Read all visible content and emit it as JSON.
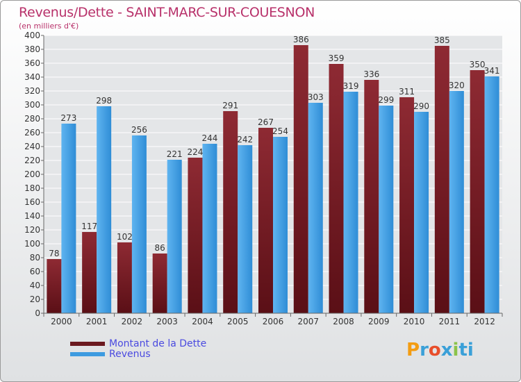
{
  "chart_data": {
    "type": "bar",
    "title": "Revenus/Dette - SAINT-MARC-SUR-COUESNON",
    "subtitle": "(en milliers d'€)",
    "xlabel": "",
    "ylabel": "",
    "ylim": [
      0,
      400
    ],
    "ytick_step": 20,
    "grid": true,
    "categories": [
      "2000",
      "2001",
      "2002",
      "2003",
      "2004",
      "2005",
      "2006",
      "2007",
      "2008",
      "2009",
      "2010",
      "2011",
      "2012"
    ],
    "series": [
      {
        "name": "Montant de la Dette",
        "color": "#7a1f26",
        "values": [
          78,
          117,
          102,
          86,
          224,
          291,
          267,
          386,
          359,
          336,
          311,
          385,
          350
        ]
      },
      {
        "name": "Revenus",
        "color": "#3d9be0",
        "values": [
          273,
          298,
          256,
          221,
          244,
          242,
          254,
          303,
          319,
          299,
          290,
          320,
          341
        ]
      }
    ],
    "legend": [
      "Montant de la Dette",
      "Revenus"
    ],
    "legend_position": "bottom-left"
  },
  "logo": {
    "text": "Proxiti",
    "letters": [
      "P",
      "r",
      "o",
      "x",
      "i",
      "ti"
    ]
  }
}
